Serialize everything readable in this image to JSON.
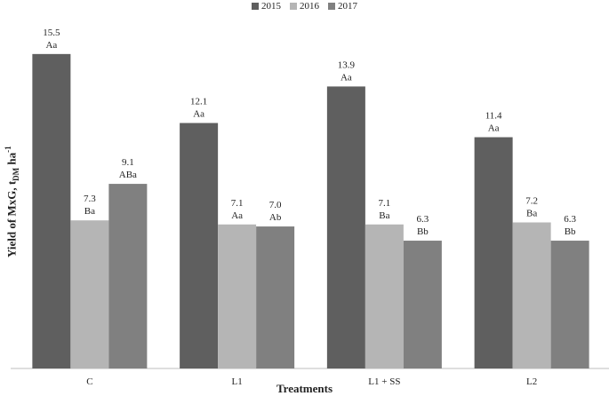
{
  "chart_data": {
    "type": "bar",
    "categories": [
      "C",
      "L1",
      "L1 + SS",
      "L2"
    ],
    "series": [
      {
        "name": "2015",
        "color": "#5f5f5f",
        "values": [
          15.5,
          12.1,
          13.9,
          11.4
        ],
        "letters": [
          "Aa",
          "Aa",
          "Aa",
          "Aa"
        ]
      },
      {
        "name": "2016",
        "color": "#b5b5b5",
        "values": [
          7.3,
          7.1,
          7.1,
          7.2
        ],
        "letters": [
          "Ba",
          "Aa",
          "Ba",
          "Ba"
        ]
      },
      {
        "name": "2017",
        "color": "#808080",
        "values": [
          9.1,
          7.0,
          6.3,
          6.3
        ],
        "letters": [
          "ABa",
          "Ab",
          "Bb",
          "Bb"
        ]
      }
    ],
    "xlabel": "Treatments",
    "ylabel_main": "Yield of MxG, t",
    "ylabel_sub": "DM",
    "ylabel_unit": " ha",
    "ylabel_sup": "-1",
    "ylim": [
      0,
      16.5
    ],
    "grid": false,
    "legend_position": "top-center"
  }
}
